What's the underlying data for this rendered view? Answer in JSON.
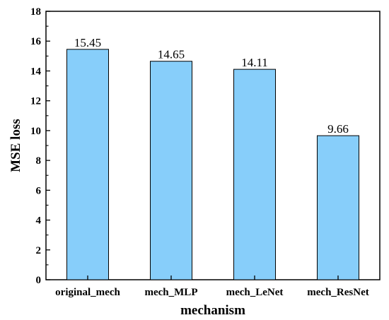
{
  "chart_data": {
    "type": "bar",
    "categories": [
      "original_mech",
      "mech_MLP",
      "mech_LeNet",
      "mech_ResNet"
    ],
    "values": [
      15.45,
      14.65,
      14.11,
      9.66
    ],
    "data_labels": [
      "15.45",
      "14.65",
      "14.11",
      "9.66"
    ],
    "title": "",
    "xlabel": "mechanism",
    "ylabel": "MSE loss",
    "ylim": [
      0,
      18
    ],
    "yticks": [
      "0",
      "2",
      "4",
      "6",
      "8",
      "10",
      "12",
      "14",
      "16",
      "18"
    ],
    "grid": false,
    "legend": "none",
    "colors": {
      "bar_fill": "#87cefa",
      "bar_stroke": "#000000",
      "axis": "#000000"
    }
  }
}
